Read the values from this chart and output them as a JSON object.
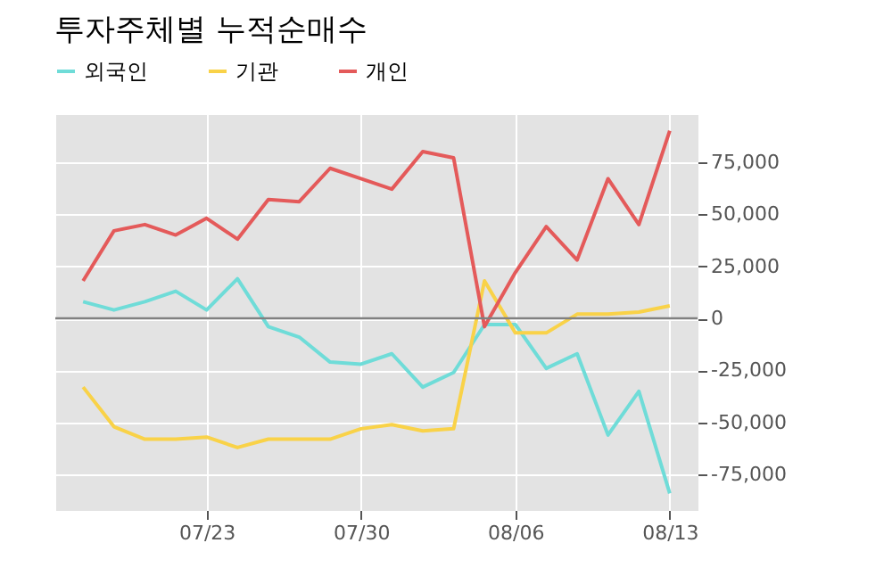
{
  "chart_data": {
    "type": "line",
    "title": "투자주체별 누적순매수",
    "categories": [
      null,
      null,
      null,
      null,
      "07/23",
      null,
      null,
      null,
      null,
      "07/30",
      null,
      null,
      null,
      null,
      "08/06",
      null,
      null,
      null,
      null,
      "08/13"
    ],
    "series": [
      {
        "name": "외국인",
        "color": "#6fdcd8",
        "values": [
          8000,
          4000,
          8000,
          13000,
          4000,
          19000,
          -4000,
          -9000,
          -21000,
          -22000,
          -17000,
          -33000,
          -26000,
          -3000,
          -3000,
          -24000,
          -17000,
          -56000,
          -35000,
          -84000
        ]
      },
      {
        "name": "기관",
        "color": "#f9d248",
        "values": [
          -33000,
          -52000,
          -58000,
          -58000,
          -57000,
          -62000,
          -58000,
          -58000,
          -58000,
          -53000,
          -51000,
          -54000,
          -53000,
          18000,
          -7000,
          -7000,
          2000,
          2000,
          3000,
          6000
        ]
      },
      {
        "name": "개인",
        "color": "#e45a5a",
        "values": [
          18000,
          42000,
          45000,
          40000,
          48000,
          38000,
          57000,
          56000,
          72000,
          67000,
          62000,
          80000,
          77000,
          -4000,
          22000,
          44000,
          28000,
          67000,
          45000,
          90000
        ]
      }
    ],
    "ylim": [
      -92000,
      98000
    ],
    "yticks": [
      {
        "value": -75000,
        "label": "-75,000"
      },
      {
        "value": -50000,
        "label": "-50,000"
      },
      {
        "value": -25000,
        "label": "-25,000"
      },
      0,
      {
        "value": 25000,
        "label": "25,000"
      },
      {
        "value": 50000,
        "label": "50,000"
      },
      {
        "value": 75000,
        "label": "75,000"
      }
    ],
    "ref_lines": [
      {
        "axis": "y",
        "value": 0,
        "color": "#808080"
      }
    ],
    "grid": true,
    "legend": "top left"
  }
}
